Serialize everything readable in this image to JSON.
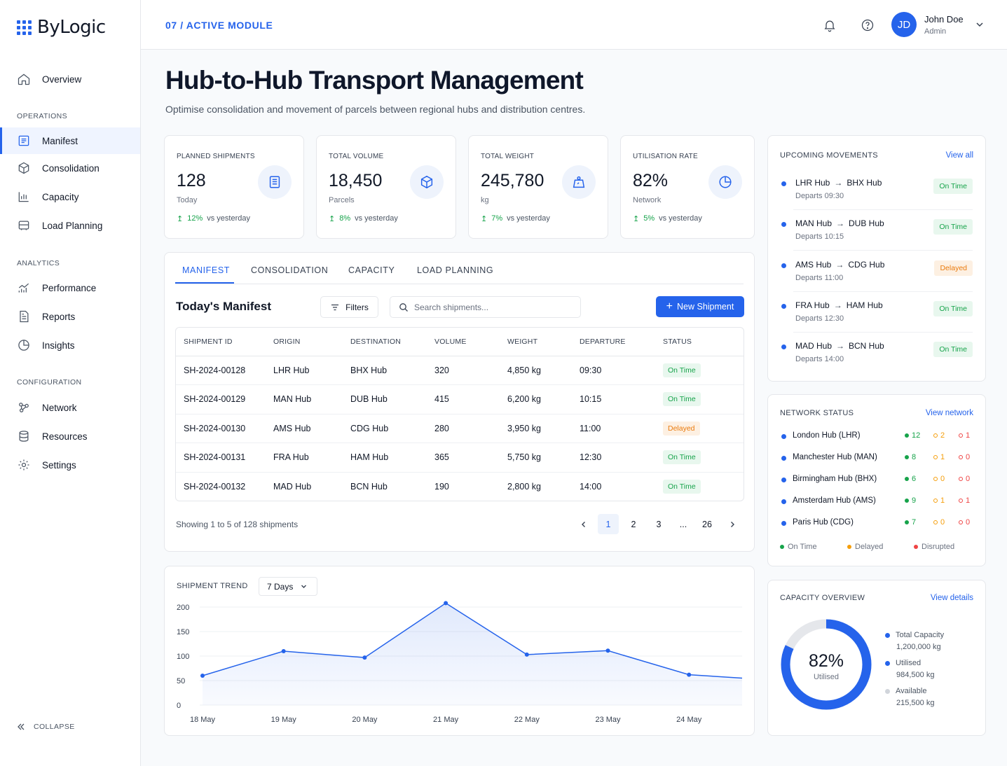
{
  "brand": {
    "name": "ByLogic"
  },
  "nav": {
    "overview": "Overview",
    "operations_heading": "OPERATIONS",
    "operations": [
      "Manifest",
      "Consolidation",
      "Capacity",
      "Load Planning"
    ],
    "analytics_heading": "ANALYTICS",
    "analytics": [
      "Performance",
      "Reports",
      "Insights"
    ],
    "configuration_heading": "CONFIGURATION",
    "configuration": [
      "Network",
      "Resources",
      "Settings"
    ],
    "collapse": "COLLAPSE"
  },
  "header": {
    "breadcrumb": "07 / ACTIVE MODULE",
    "user": {
      "initials": "JD",
      "name": "John Doe",
      "role": "Admin"
    }
  },
  "page": {
    "title": "Hub-to-Hub Transport Management",
    "subtitle": "Optimise consolidation and movement of parcels between regional hubs and distribution centres."
  },
  "kpis": [
    {
      "label": "PLANNED SHIPMENTS",
      "value": "128",
      "unit": "Today",
      "change": "12%",
      "compare": "vs yesterday",
      "icon": "document-icon"
    },
    {
      "label": "TOTAL VOLUME",
      "value": "18,450",
      "unit": "Parcels",
      "change": "8%",
      "compare": "vs yesterday",
      "icon": "box-icon"
    },
    {
      "label": "TOTAL WEIGHT",
      "value": "245,780",
      "unit": "kg",
      "change": "7%",
      "compare": "vs yesterday",
      "icon": "weight-icon"
    },
    {
      "label": "UTILISATION RATE",
      "value": "82%",
      "unit": "Network",
      "change": "5%",
      "compare": "vs yesterday",
      "icon": "pie-icon"
    }
  ],
  "tabs": [
    "MANIFEST",
    "CONSOLIDATION",
    "CAPACITY",
    "LOAD PLANNING"
  ],
  "manifest": {
    "title": "Today's Manifest",
    "filters_label": "Filters",
    "search_placeholder": "Search shipments...",
    "new_button": "New Shipment",
    "columns": [
      "SHIPMENT ID",
      "ORIGIN",
      "DESTINATION",
      "VOLUME",
      "WEIGHT",
      "DEPARTURE",
      "STATUS"
    ],
    "rows": [
      [
        "SH-2024-00128",
        "LHR Hub",
        "BHX Hub",
        "320",
        "4,850 kg",
        "09:30",
        "On Time"
      ],
      [
        "SH-2024-00129",
        "MAN Hub",
        "DUB Hub",
        "415",
        "6,200 kg",
        "10:15",
        "On Time"
      ],
      [
        "SH-2024-00130",
        "AMS Hub",
        "CDG Hub",
        "280",
        "3,950 kg",
        "11:00",
        "Delayed"
      ],
      [
        "SH-2024-00131",
        "FRA Hub",
        "HAM Hub",
        "365",
        "5,750 kg",
        "12:30",
        "On Time"
      ],
      [
        "SH-2024-00132",
        "MAD Hub",
        "BCN Hub",
        "190",
        "2,800 kg",
        "14:00",
        "On Time"
      ]
    ],
    "showing": "Showing 1 to 5 of 128 shipments",
    "pages": [
      "1",
      "2",
      "3",
      "...",
      "26"
    ],
    "current_page": "1"
  },
  "trend": {
    "label": "SHIPMENT TREND",
    "range": "7 Days"
  },
  "chart_data": {
    "type": "area",
    "title": "SHIPMENT TREND",
    "categories": [
      "18 May",
      "19 May",
      "20 May",
      "21 May",
      "22 May",
      "23 May",
      "24 May"
    ],
    "values": [
      60,
      110,
      97,
      208,
      103,
      111,
      62
    ],
    "trailing_value": 55,
    "yticks": [
      "200",
      "150",
      "100",
      "50",
      "0"
    ],
    "ylim": [
      0,
      200
    ],
    "grid": true,
    "color": "#2563eb"
  },
  "upcoming": {
    "title": "UPCOMING MOVEMENTS",
    "link": "View all",
    "items": [
      {
        "from": "LHR Hub",
        "to": "BHX Hub",
        "time": "Departs 09:30",
        "status": "On Time"
      },
      {
        "from": "MAN Hub",
        "to": "DUB Hub",
        "time": "Departs 10:15",
        "status": "On Time"
      },
      {
        "from": "AMS Hub",
        "to": "CDG Hub",
        "time": "Departs 11:00",
        "status": "Delayed"
      },
      {
        "from": "FRA Hub",
        "to": "HAM Hub",
        "time": "Departs 12:30",
        "status": "On Time"
      },
      {
        "from": "MAD Hub",
        "to": "BCN Hub",
        "time": "Departs 14:00",
        "status": "On Time"
      }
    ]
  },
  "network": {
    "title": "NETWORK STATUS",
    "link": "View network",
    "hubs": [
      {
        "name": "London Hub (LHR)",
        "on_time": "12",
        "delayed": "2",
        "disrupted": "1"
      },
      {
        "name": "Manchester Hub (MAN)",
        "on_time": "8",
        "delayed": "1",
        "disrupted": "0"
      },
      {
        "name": "Birmingham Hub (BHX)",
        "on_time": "6",
        "delayed": "0",
        "disrupted": "0"
      },
      {
        "name": "Amsterdam Hub (AMS)",
        "on_time": "9",
        "delayed": "1",
        "disrupted": "1"
      },
      {
        "name": "Paris Hub (CDG)",
        "on_time": "7",
        "delayed": "0",
        "disrupted": "0"
      }
    ],
    "legend": [
      "On Time",
      "Delayed",
      "Disrupted"
    ]
  },
  "capacity": {
    "title": "CAPACITY OVERVIEW",
    "link": "View details",
    "percent_label": "82%",
    "utilised_fraction": 0.82,
    "center_label": "Utilised",
    "legend": [
      {
        "label": "Total Capacity",
        "value": "1,200,000 kg"
      },
      {
        "label": "Utilised",
        "value": "984,500 kg"
      },
      {
        "label": "Available",
        "value": "215,500 kg"
      }
    ]
  },
  "colors": {
    "accent": "#2563eb",
    "on_time": "#16a34a",
    "delayed": "#f59e0b",
    "disrupted": "#ef4444"
  }
}
